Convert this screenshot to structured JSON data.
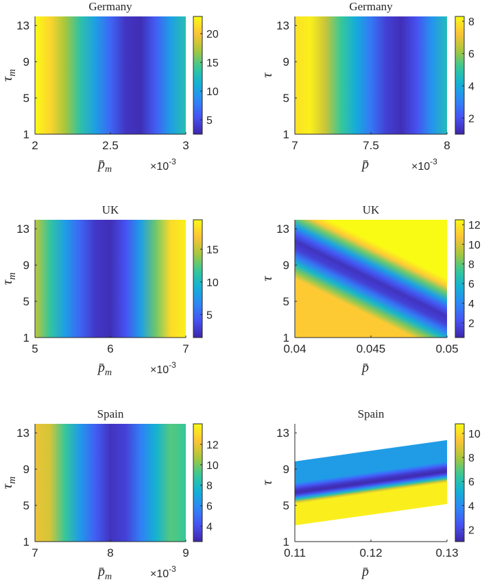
{
  "chart_data": [
    {
      "type": "heatmap",
      "title": "Germany",
      "xlabel": "p̄",
      "xlabel_sub": "m",
      "ylabel": "τ",
      "ylabel_sub": "m",
      "x_ticks": [
        "2",
        "2.5",
        "3"
      ],
      "x_tick_values": [
        0.002,
        0.0025,
        0.003
      ],
      "x_multiplier": "×10",
      "x_multiplier_exp": "-3",
      "xlim": [
        0.002,
        0.003
      ],
      "y_ticks": [
        "1",
        "5",
        "9",
        "13"
      ],
      "y_tick_values": [
        1,
        5,
        9,
        13
      ],
      "ylim": [
        1,
        14
      ],
      "colorbar_ticks": [
        "5",
        "10",
        "15",
        "20"
      ],
      "colorbar_tick_values": [
        5,
        10,
        15,
        20
      ],
      "clim": [
        2.5,
        23
      ],
      "profile_x": [
        0.002,
        0.0021,
        0.0022,
        0.0023,
        0.0024,
        0.0025,
        0.0026,
        0.0027,
        0.0028,
        0.0029,
        0.003
      ],
      "profile_values": [
        23,
        21,
        17,
        13.5,
        10,
        6.5,
        3.5,
        3,
        6,
        10,
        13
      ],
      "tilt": 0
    },
    {
      "type": "heatmap",
      "title": "Germany",
      "xlabel": "p̄",
      "xlabel_sub": "",
      "ylabel": "τ",
      "ylabel_sub": "",
      "x_ticks": [
        "7",
        "7.5",
        "8"
      ],
      "x_tick_values": [
        0.007,
        0.0075,
        0.008
      ],
      "x_multiplier": "×10",
      "x_multiplier_exp": "-3",
      "xlim": [
        0.007,
        0.008
      ],
      "y_ticks": [
        "1",
        "5",
        "9",
        "13"
      ],
      "y_tick_values": [
        1,
        5,
        9,
        13
      ],
      "ylim": [
        1,
        14
      ],
      "colorbar_ticks": [
        "2",
        "4",
        "6",
        "8"
      ],
      "colorbar_tick_values": [
        2,
        4,
        6,
        8
      ],
      "clim": [
        1,
        8.3
      ],
      "profile_x": [
        0.007,
        0.0071,
        0.0072,
        0.0073,
        0.0074,
        0.0075,
        0.0076,
        0.0077,
        0.0078,
        0.0079,
        0.008
      ],
      "profile_values": [
        7.8,
        8.1,
        6.6,
        5.2,
        4,
        2.8,
        1.6,
        1.2,
        2,
        3.4,
        4.6
      ],
      "tilt": 0
    },
    {
      "type": "heatmap",
      "title": "UK",
      "xlabel": "p̄",
      "xlabel_sub": "m",
      "ylabel": "τ",
      "ylabel_sub": "m",
      "x_ticks": [
        "5",
        "6",
        "7"
      ],
      "x_tick_values": [
        0.005,
        0.006,
        0.007
      ],
      "x_multiplier": "×10",
      "x_multiplier_exp": "-3",
      "xlim": [
        0.005,
        0.007
      ],
      "y_ticks": [
        "1",
        "5",
        "9",
        "13"
      ],
      "y_tick_values": [
        1,
        5,
        9,
        13
      ],
      "ylim": [
        1,
        14
      ],
      "colorbar_ticks": [
        "5",
        "10",
        "15"
      ],
      "colorbar_tick_values": [
        5,
        10,
        15
      ],
      "clim": [
        1.5,
        19.5
      ],
      "profile_x": [
        0.005,
        0.0052,
        0.0054,
        0.0056,
        0.0058,
        0.006,
        0.0062,
        0.0064,
        0.0066,
        0.0068,
        0.007
      ],
      "profile_values": [
        15,
        11.5,
        8,
        5,
        2.5,
        2,
        4,
        8,
        13,
        18,
        19
      ],
      "tilt": 0
    },
    {
      "type": "heatmap",
      "title": "UK",
      "xlabel": "p̄",
      "xlabel_sub": "",
      "ylabel": "τ",
      "ylabel_sub": "",
      "x_ticks": [
        "0.04",
        "0.045",
        "0.05"
      ],
      "x_tick_values": [
        0.04,
        0.045,
        0.05
      ],
      "x_multiplier": "",
      "x_multiplier_exp": "",
      "xlim": [
        0.04,
        0.05
      ],
      "y_ticks": [
        "1",
        "5",
        "9",
        "13"
      ],
      "y_tick_values": [
        1,
        5,
        9,
        13
      ],
      "ylim": [
        1,
        14
      ],
      "colorbar_ticks": [
        "2",
        "4",
        "6",
        "8",
        "10",
        "12"
      ],
      "colorbar_tick_values": [
        2,
        4,
        6,
        8,
        10,
        12
      ],
      "clim": [
        0.5,
        12.5
      ],
      "profile_x": [
        0.04,
        0.041,
        0.042,
        0.043,
        0.044,
        0.045,
        0.046,
        0.047,
        0.048,
        0.049,
        0.05
      ],
      "profile_values": [
        11,
        8.5,
        6,
        3.5,
        1.5,
        1,
        2.5,
        5,
        8,
        11,
        12.5
      ],
      "tilt": -0.0012
    },
    {
      "type": "heatmap",
      "title": "Spain",
      "xlabel": "p̄",
      "xlabel_sub": "m",
      "ylabel": "τ",
      "ylabel_sub": "m",
      "x_ticks": [
        "7",
        "8",
        "9"
      ],
      "x_tick_values": [
        0.007,
        0.008,
        0.009
      ],
      "x_multiplier": "×10",
      "x_multiplier_exp": "-3",
      "xlim": [
        0.007,
        0.009
      ],
      "y_ticks": [
        "1",
        "5",
        "9",
        "13"
      ],
      "y_tick_values": [
        1,
        5,
        9,
        13
      ],
      "ylim": [
        1,
        14
      ],
      "colorbar_ticks": [
        "4",
        "6",
        "8",
        "10",
        "12"
      ],
      "colorbar_tick_values": [
        4,
        6,
        8,
        10,
        12
      ],
      "clim": [
        2.5,
        14
      ],
      "profile_x": [
        0.007,
        0.0072,
        0.0074,
        0.0076,
        0.0078,
        0.008,
        0.0082,
        0.0084,
        0.0086,
        0.0088,
        0.009
      ],
      "profile_values": [
        12,
        11.5,
        9,
        6.5,
        4.5,
        3,
        3.5,
        5.5,
        7.5,
        9.5,
        9
      ],
      "tilt": 0
    },
    {
      "type": "heatmap",
      "title": "Spain",
      "xlabel": "p̄",
      "xlabel_sub": "",
      "ylabel": "τ",
      "ylabel_sub": "",
      "x_ticks": [
        "0.11",
        "0.12",
        "0.13"
      ],
      "x_tick_values": [
        0.11,
        0.12,
        0.13
      ],
      "x_multiplier": "",
      "x_multiplier_exp": "",
      "xlim": [
        0.11,
        0.13
      ],
      "y_ticks": [
        "1",
        "5",
        "9",
        "13"
      ],
      "y_tick_values": [
        1,
        5,
        9,
        13
      ],
      "ylim": [
        1,
        14
      ],
      "colorbar_ticks": [
        "2",
        "4",
        "6",
        "8",
        "10"
      ],
      "colorbar_tick_values": [
        2,
        4,
        6,
        8,
        10
      ],
      "clim": [
        1,
        10.8
      ],
      "profile_x": [
        0.11,
        0.112,
        0.114,
        0.116,
        0.118,
        0.12,
        0.122,
        0.124,
        0.126,
        0.128,
        0.13
      ],
      "profile_values": [
        4.5,
        3.5,
        2.6,
        1.8,
        1.3,
        1.2,
        2.2,
        4,
        6.2,
        8.6,
        10.5
      ],
      "tilt": 0.0085
    }
  ]
}
